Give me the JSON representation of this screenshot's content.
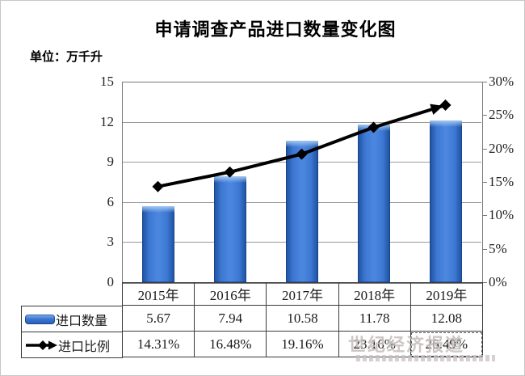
{
  "chart_data": {
    "type": "bar+line",
    "title": "申请调查产品进口数量变化图",
    "unit_label": "单位：万千升",
    "categories": [
      "2015年",
      "2016年",
      "2017年",
      "2018年",
      "2019年"
    ],
    "series": [
      {
        "name": "进口数量",
        "type": "bar",
        "axis": "left",
        "values": [
          5.67,
          7.94,
          10.58,
          11.78,
          12.08
        ],
        "formatted": [
          "5.67",
          "7.94",
          "10.58",
          "11.78",
          "12.08"
        ]
      },
      {
        "name": "进口比例",
        "type": "line",
        "axis": "right",
        "values": [
          14.31,
          16.48,
          19.16,
          23.16,
          26.49
        ],
        "formatted": [
          "14.31%",
          "16.48%",
          "19.16%",
          "23.16%",
          "26.49%"
        ]
      }
    ],
    "left_axis": {
      "min": 0,
      "max": 15,
      "ticks": [
        "15",
        "12",
        "9",
        "6",
        "3",
        "0"
      ]
    },
    "right_axis": {
      "min": 0,
      "max": 30,
      "ticks": [
        "30%",
        "25%",
        "20%",
        "15%",
        "10%",
        "5%",
        "0%"
      ]
    },
    "grid": "horizontal, left-axis intervals",
    "legend_position": "table rows left of data table"
  },
  "watermark": "世纪经济报道",
  "colors": {
    "bar_fill": "#3c77d2",
    "bar_edge": "#1d4f9c",
    "bar_highlight": "#8ab6ee",
    "line": "#000000",
    "grid": "#9a9a9a",
    "plot_border": "#7a7a7a",
    "table_border": "#3a3a3a",
    "text": "#1a1a1a",
    "watermark": "#c4bcbc"
  }
}
